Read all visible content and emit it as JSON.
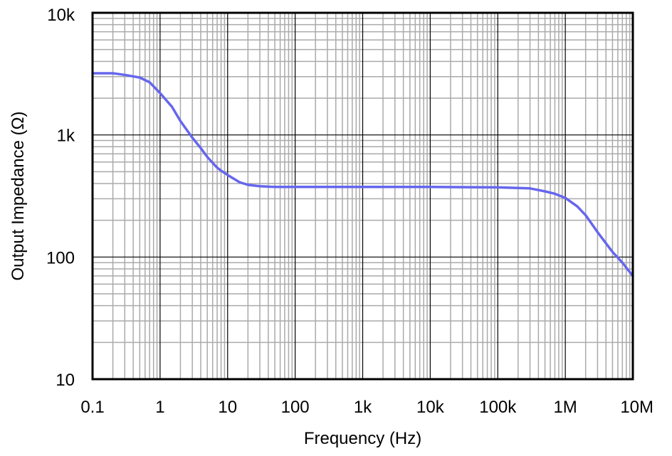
{
  "chart_data": {
    "type": "line",
    "title": "",
    "xlabel": "Frequency (Hz)",
    "ylabel": "Output Impedance (Ω)",
    "x_scale": "log",
    "y_scale": "log",
    "xlim": [
      0.1,
      10000000
    ],
    "ylim": [
      10,
      10000
    ],
    "x_ticks": [
      {
        "value": 0.1,
        "label": "0.1"
      },
      {
        "value": 1,
        "label": "1"
      },
      {
        "value": 10,
        "label": "10"
      },
      {
        "value": 100,
        "label": "100"
      },
      {
        "value": 1000,
        "label": "1k"
      },
      {
        "value": 10000,
        "label": "10k"
      },
      {
        "value": 100000,
        "label": "100k"
      },
      {
        "value": 1000000,
        "label": "1M"
      },
      {
        "value": 10000000,
        "label": "10M"
      }
    ],
    "y_ticks": [
      {
        "value": 10,
        "label": "10"
      },
      {
        "value": 100,
        "label": "100"
      },
      {
        "value": 1000,
        "label": "1k"
      },
      {
        "value": 10000,
        "label": "10k"
      }
    ],
    "grid": {
      "major": true,
      "minor": true
    },
    "colors": {
      "series": "#6666EE",
      "grid_major": "#000000",
      "grid_minor": "#AAAAAA",
      "frame": "#000000"
    },
    "series": [
      {
        "x": [
          0.1,
          0.2,
          0.3,
          0.5,
          0.7,
          1,
          1.5,
          2,
          3,
          4,
          5,
          6,
          7,
          8,
          10,
          15,
          20,
          30,
          50,
          100,
          1000,
          10000,
          100000,
          300000,
          500000,
          700000,
          1000000,
          1500000,
          2000000,
          3000000,
          5000000,
          7000000,
          10000000
        ],
        "y": [
          3200,
          3200,
          3100,
          2950,
          2700,
          2200,
          1700,
          1300,
          950,
          780,
          660,
          590,
          540,
          510,
          470,
          410,
          390,
          380,
          375,
          375,
          375,
          375,
          372,
          365,
          345,
          330,
          305,
          260,
          220,
          160,
          110,
          90,
          70
        ]
      }
    ]
  }
}
